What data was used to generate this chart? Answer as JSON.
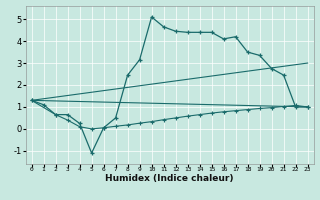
{
  "xlabel": "Humidex (Indice chaleur)",
  "background_color": "#c8e8e0",
  "line_color": "#1a6b6b",
  "xlim": [
    -0.5,
    23.5
  ],
  "ylim": [
    -1.6,
    5.6
  ],
  "xticks": [
    0,
    1,
    2,
    3,
    4,
    5,
    6,
    7,
    8,
    9,
    10,
    11,
    12,
    13,
    14,
    15,
    16,
    17,
    18,
    19,
    20,
    21,
    22,
    23
  ],
  "yticks": [
    -1,
    0,
    1,
    2,
    3,
    4,
    5
  ],
  "line1_x": [
    0,
    1,
    2,
    3,
    4,
    5,
    6,
    7,
    8,
    9,
    10,
    11,
    12,
    13,
    14,
    15,
    16,
    17,
    18,
    19,
    20,
    21,
    22,
    23
  ],
  "line1_y": [
    1.3,
    1.1,
    0.65,
    0.65,
    0.25,
    -1.1,
    0.05,
    0.5,
    2.45,
    3.15,
    5.1,
    4.65,
    4.45,
    4.4,
    4.4,
    4.4,
    4.1,
    4.2,
    3.5,
    3.35,
    2.75,
    2.45,
    1.0,
    1.0
  ],
  "line2_x": [
    0,
    2,
    3,
    4,
    5,
    6,
    7,
    8,
    9,
    10,
    11,
    12,
    13,
    14,
    15,
    16,
    17,
    18,
    19,
    20,
    21,
    22,
    23
  ],
  "line2_y": [
    1.3,
    0.65,
    0.4,
    0.1,
    0.0,
    0.05,
    0.12,
    0.18,
    0.26,
    0.33,
    0.42,
    0.5,
    0.58,
    0.65,
    0.72,
    0.78,
    0.83,
    0.88,
    0.93,
    0.97,
    1.02,
    1.07,
    1.0
  ],
  "line3_x": [
    0,
    23
  ],
  "line3_y": [
    1.3,
    1.0
  ],
  "line4_x": [
    0,
    23
  ],
  "line4_y": [
    1.3,
    3.0
  ]
}
